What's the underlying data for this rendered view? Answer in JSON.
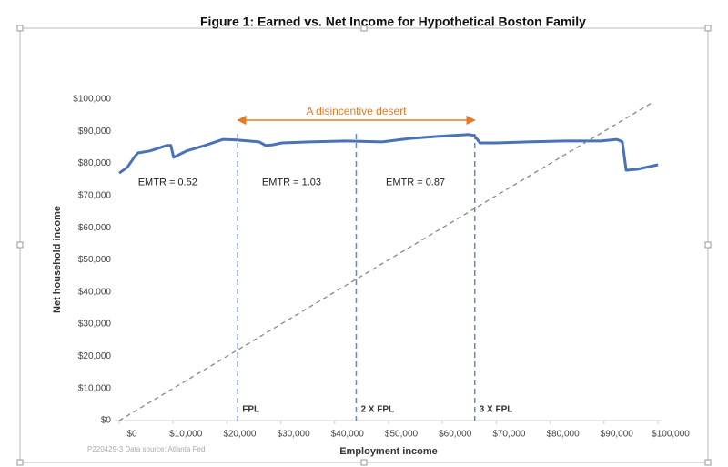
{
  "chart_data": {
    "type": "line",
    "title": "Figure 1: Earned vs. Net Income for Hypothetical Boston Family",
    "x_label": "Employment income",
    "y_label": "Net household income",
    "source": "P220429-3 Data source: Atlanta Fed",
    "xlim": [
      0,
      100000
    ],
    "ylim": [
      0,
      100000
    ],
    "xticks": [
      {
        "value": 0,
        "label": "$0"
      },
      {
        "value": 10000,
        "label": "$10,000"
      },
      {
        "value": 20000,
        "label": "$20,000"
      },
      {
        "value": 30000,
        "label": "$30,000"
      },
      {
        "value": 40000,
        "label": "$40,000"
      },
      {
        "value": 50000,
        "label": "$50,000"
      },
      {
        "value": 60000,
        "label": "$60,000"
      },
      {
        "value": 70000,
        "label": "$70,000"
      },
      {
        "value": 80000,
        "label": "$80,000"
      },
      {
        "value": 90000,
        "label": "$90,000"
      },
      {
        "value": 100000,
        "label": "$100,000"
      }
    ],
    "yticks": [
      {
        "value": 0,
        "label": "$0"
      },
      {
        "value": 10000,
        "label": "$10,000"
      },
      {
        "value": 20000,
        "label": "$20,000"
      },
      {
        "value": 30000,
        "label": "$30,000"
      },
      {
        "value": 40000,
        "label": "$40,000"
      },
      {
        "value": 50000,
        "label": "$50,000"
      },
      {
        "value": 60000,
        "label": "$60,000"
      },
      {
        "value": 70000,
        "label": "$70,000"
      },
      {
        "value": 80000,
        "label": "$80,000"
      },
      {
        "value": 90000,
        "label": "$90,000"
      },
      {
        "value": 100000,
        "label": "$100,000"
      }
    ],
    "series": [
      {
        "color": "#4a72b8",
        "dash": false,
        "x": [
          0,
          1500,
          2900,
          3500,
          5700,
          8800,
          9600,
          10100,
          12500,
          15900,
          19300,
          21800,
          26000,
          27200,
          28500,
          30200,
          35300,
          42000,
          48800,
          53900,
          59000,
          64900,
          65900,
          67000,
          70000,
          75800,
          82600,
          89400,
          92400,
          93400,
          94100,
          96100,
          100000
        ],
        "values": [
          77000,
          78800,
          82200,
          83300,
          83900,
          85600,
          85600,
          81900,
          83900,
          85600,
          87500,
          87300,
          86700,
          85600,
          85800,
          86400,
          86700,
          87000,
          86700,
          87800,
          88400,
          89000,
          88700,
          86400,
          86400,
          86700,
          87000,
          87000,
          87500,
          86700,
          77900,
          78200,
          79600
        ]
      },
      {
        "color": "#888888",
        "dash": true,
        "x": [
          0,
          99000
        ],
        "values": [
          0,
          99000
        ]
      }
    ],
    "reference_lines": [
      {
        "x": 22000,
        "label": "FPL"
      },
      {
        "x": 44000,
        "label": "2 X FPL"
      },
      {
        "x": 66000,
        "label": "3 X FPL"
      }
    ],
    "reference_color": "#5b8bc9",
    "arrow": {
      "label": "A disincentive desert",
      "x": [
        22000,
        66000
      ],
      "y": 93500,
      "color": "#e07b2a"
    },
    "annotations": [
      {
        "text": "EMTR = 0.52",
        "x": 9000,
        "y": 74000
      },
      {
        "text": "EMTR = 1.03",
        "x": 32000,
        "y": 74000
      },
      {
        "text": "EMTR = 0.87",
        "x": 55000,
        "y": 74000
      }
    ]
  }
}
